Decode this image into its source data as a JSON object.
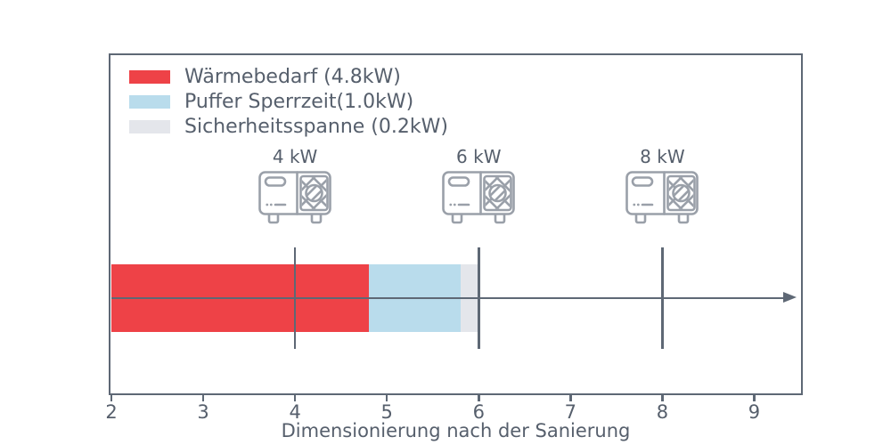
{
  "chart_data": {
    "type": "bar",
    "orientation": "horizontal",
    "title": "",
    "xlabel": "Dimensionierung nach der Sanierung",
    "ylabel": "",
    "xlim": [
      2,
      9.5
    ],
    "x_ticks": [
      2,
      3,
      4,
      5,
      6,
      7,
      8,
      9
    ],
    "grid": false,
    "legend_position": "upper left",
    "x_axis_arrow": true,
    "bar": {
      "start": 2.0,
      "segments": [
        {
          "name": "Wärmebedarf",
          "value_kw": 4.8,
          "start": 2.0,
          "end": 4.8,
          "color": "#ee4247"
        },
        {
          "name": "Puffer Sperrzeit",
          "value_kw": 1.0,
          "start": 4.8,
          "end": 5.8,
          "color": "#b9dcec"
        },
        {
          "name": "Sicherheitsspanne",
          "value_kw": 0.2,
          "start": 5.8,
          "end": 6.0,
          "color": "#e4e6eb"
        }
      ]
    },
    "pump_markers": [
      {
        "label": "4 kW",
        "x": 4
      },
      {
        "label": "6 kW",
        "x": 6
      },
      {
        "label": "8 kW",
        "x": 8
      }
    ]
  },
  "legend": {
    "items": [
      {
        "label": "Wärmebedarf (4.8kW)",
        "color": "#ee4247"
      },
      {
        "label": "Puffer Sperrzeit(1.0kW)",
        "color": "#b9dcec"
      },
      {
        "label": "Sicherheitsspanne (0.2kW)",
        "color": "#e4e6eb"
      }
    ]
  },
  "colors": {
    "axis_line": "#5e6875",
    "text": "#565f6c",
    "icon_stroke": "#9aa0a9",
    "background": "#ffffff"
  }
}
